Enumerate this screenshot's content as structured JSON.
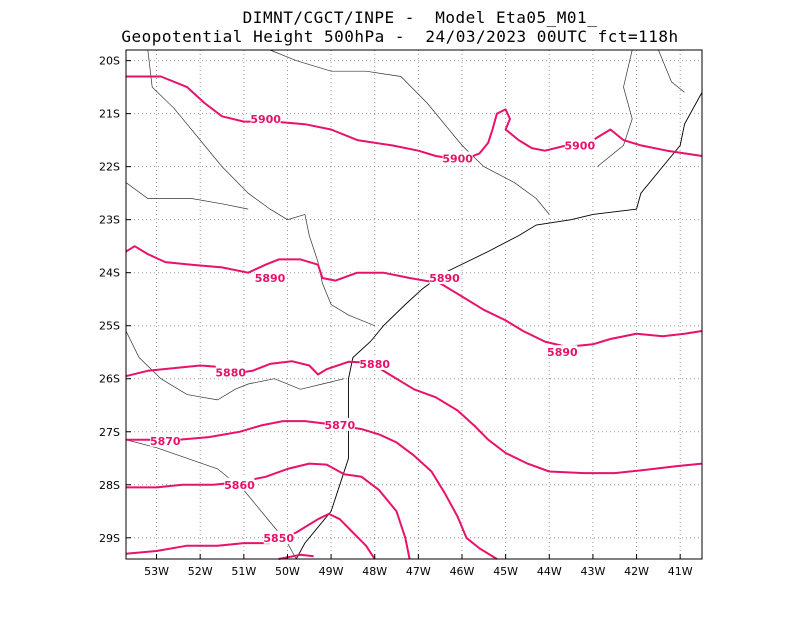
{
  "title_line1": "DIMNT/CGCT/INPE -  Model Eta05_M01_",
  "title_line2": "Geopotential Height 500hPa -  24/03/2023 00UTC fct=118h",
  "colors": {
    "contour": "#e8126a",
    "coast": "#000000",
    "grid": "#9a9a9a"
  },
  "chart_data": {
    "type": "contour-map",
    "variable": "Geopotential Height 500hPa",
    "lon_range": [
      -53.7,
      -40.5
    ],
    "lat_range": [
      -29.4,
      -19.8
    ],
    "x_ticks": [
      "53W",
      "52W",
      "51W",
      "50W",
      "49W",
      "48W",
      "47W",
      "46W",
      "45W",
      "44W",
      "43W",
      "42W",
      "41W"
    ],
    "y_ticks": [
      "20S",
      "21S",
      "22S",
      "23S",
      "24S",
      "25S",
      "26S",
      "27S",
      "28S",
      "29S"
    ],
    "contours": [
      {
        "level": 5900,
        "points": [
          [
            -53.7,
            -20.3
          ],
          [
            -52.9,
            -20.3
          ],
          [
            -52.3,
            -20.5
          ],
          [
            -51.9,
            -20.8
          ],
          [
            -51.5,
            -21.05
          ],
          [
            -51.0,
            -21.15
          ],
          [
            -50.3,
            -21.15
          ],
          [
            -49.6,
            -21.2
          ],
          [
            -49.0,
            -21.3
          ],
          [
            -48.4,
            -21.5
          ],
          [
            -47.6,
            -21.6
          ],
          [
            -47.0,
            -21.7
          ],
          [
            -46.6,
            -21.8
          ],
          [
            -46.2,
            -21.85
          ],
          [
            -45.9,
            -21.85
          ],
          [
            -45.6,
            -21.75
          ],
          [
            -45.4,
            -21.55
          ],
          [
            -45.3,
            -21.3
          ],
          [
            -45.2,
            -21.0
          ],
          [
            -45.0,
            -20.92
          ],
          [
            -44.9,
            -21.1
          ],
          [
            -45.0,
            -21.3
          ],
          [
            -44.7,
            -21.5
          ],
          [
            -44.4,
            -21.65
          ],
          [
            -44.1,
            -21.7
          ],
          [
            -43.6,
            -21.6
          ],
          [
            -43.0,
            -21.5
          ],
          [
            -42.6,
            -21.3
          ],
          [
            -42.3,
            -21.5
          ],
          [
            -41.9,
            -21.6
          ],
          [
            -41.3,
            -21.7
          ],
          [
            -40.5,
            -21.8
          ]
        ]
      },
      {
        "level": 5890,
        "points": [
          [
            -53.7,
            -23.6
          ],
          [
            -53.5,
            -23.5
          ],
          [
            -53.2,
            -23.65
          ],
          [
            -52.8,
            -23.8
          ],
          [
            -52.2,
            -23.85
          ],
          [
            -51.5,
            -23.9
          ],
          [
            -50.9,
            -24.0
          ],
          [
            -50.5,
            -23.85
          ],
          [
            -50.2,
            -23.75
          ],
          [
            -49.7,
            -23.75
          ],
          [
            -49.3,
            -23.85
          ],
          [
            -49.2,
            -24.1
          ],
          [
            -48.9,
            -24.15
          ],
          [
            -48.4,
            -24.0
          ],
          [
            -47.8,
            -24.0
          ],
          [
            -47.2,
            -24.1
          ],
          [
            -46.5,
            -24.2
          ],
          [
            -46.0,
            -24.45
          ],
          [
            -45.5,
            -24.7
          ],
          [
            -45.0,
            -24.9
          ],
          [
            -44.6,
            -25.1
          ],
          [
            -44.1,
            -25.3
          ],
          [
            -43.6,
            -25.4
          ],
          [
            -43.0,
            -25.35
          ],
          [
            -42.6,
            -25.25
          ],
          [
            -42.0,
            -25.15
          ],
          [
            -41.4,
            -25.2
          ],
          [
            -40.9,
            -25.15
          ],
          [
            -40.5,
            -25.1
          ]
        ]
      },
      {
        "level": 5880,
        "points": [
          [
            -53.7,
            -25.95
          ],
          [
            -53.2,
            -25.85
          ],
          [
            -52.6,
            -25.8
          ],
          [
            -52.0,
            -25.75
          ],
          [
            -51.5,
            -25.78
          ],
          [
            -51.2,
            -25.9
          ],
          [
            -50.8,
            -25.85
          ],
          [
            -50.4,
            -25.72
          ],
          [
            -49.9,
            -25.67
          ],
          [
            -49.5,
            -25.75
          ],
          [
            -49.3,
            -25.92
          ],
          [
            -49.1,
            -25.82
          ],
          [
            -48.6,
            -25.68
          ],
          [
            -48.1,
            -25.7
          ],
          [
            -47.6,
            -25.95
          ],
          [
            -47.1,
            -26.2
          ],
          [
            -46.6,
            -26.35
          ],
          [
            -46.1,
            -26.6
          ],
          [
            -45.7,
            -26.9
          ],
          [
            -45.4,
            -27.15
          ],
          [
            -45.0,
            -27.4
          ],
          [
            -44.5,
            -27.6
          ],
          [
            -44.0,
            -27.75
          ],
          [
            -43.2,
            -27.78
          ],
          [
            -42.5,
            -27.78
          ],
          [
            -41.8,
            -27.72
          ],
          [
            -41.1,
            -27.65
          ],
          [
            -40.5,
            -27.6
          ]
        ]
      },
      {
        "level": 5870,
        "points": [
          [
            -53.7,
            -27.15
          ],
          [
            -53.2,
            -27.15
          ],
          [
            -52.5,
            -27.15
          ],
          [
            -51.8,
            -27.1
          ],
          [
            -51.1,
            -27.0
          ],
          [
            -50.6,
            -26.88
          ],
          [
            -50.1,
            -26.8
          ],
          [
            -49.6,
            -26.8
          ],
          [
            -49.1,
            -26.85
          ],
          [
            -48.7,
            -26.9
          ],
          [
            -48.3,
            -26.95
          ],
          [
            -47.9,
            -27.05
          ],
          [
            -47.5,
            -27.2
          ],
          [
            -47.1,
            -27.45
          ],
          [
            -46.7,
            -27.75
          ],
          [
            -46.4,
            -28.15
          ],
          [
            -46.1,
            -28.6
          ],
          [
            -45.9,
            -29.0
          ],
          [
            -45.6,
            -29.2
          ],
          [
            -45.2,
            -29.4
          ]
        ]
      },
      {
        "level": 5860,
        "points": [
          [
            -53.7,
            -28.05
          ],
          [
            -53.0,
            -28.05
          ],
          [
            -52.4,
            -28.0
          ],
          [
            -51.7,
            -28.0
          ],
          [
            -51.1,
            -27.95
          ],
          [
            -50.5,
            -27.85
          ],
          [
            -50.0,
            -27.7
          ],
          [
            -49.5,
            -27.6
          ],
          [
            -49.1,
            -27.62
          ],
          [
            -48.7,
            -27.8
          ],
          [
            -48.3,
            -27.85
          ],
          [
            -47.9,
            -28.1
          ],
          [
            -47.5,
            -28.5
          ],
          [
            -47.3,
            -29.0
          ],
          [
            -47.2,
            -29.4
          ]
        ]
      },
      {
        "level": 5850,
        "points": [
          [
            -53.7,
            -29.3
          ],
          [
            -53.0,
            -29.25
          ],
          [
            -52.3,
            -29.15
          ],
          [
            -51.6,
            -29.15
          ],
          [
            -51.0,
            -29.1
          ],
          [
            -50.4,
            -29.1
          ],
          [
            -49.8,
            -28.9
          ],
          [
            -49.3,
            -28.65
          ],
          [
            -49.05,
            -28.55
          ],
          [
            -48.8,
            -28.65
          ],
          [
            -48.5,
            -28.9
          ],
          [
            -48.2,
            -29.15
          ],
          [
            -48.0,
            -29.4
          ]
        ]
      },
      {
        "level": 5850,
        "points": [
          [
            -50.2,
            -29.4
          ],
          [
            -49.7,
            -29.32
          ],
          [
            -49.4,
            -29.35
          ]
        ]
      }
    ],
    "contour_labels": [
      {
        "text": "5900",
        "lon": -50.5,
        "lat": -21.1
      },
      {
        "text": "5900",
        "lon": -46.1,
        "lat": -21.85
      },
      {
        "text": "5900",
        "lon": -43.3,
        "lat": -21.6
      },
      {
        "text": "5890",
        "lon": -50.4,
        "lat": -24.1
      },
      {
        "text": "5890",
        "lon": -46.4,
        "lat": -24.1
      },
      {
        "text": "5890",
        "lon": -43.7,
        "lat": -25.5
      },
      {
        "text": "5880",
        "lon": -51.3,
        "lat": -25.88
      },
      {
        "text": "5880",
        "lon": -48.0,
        "lat": -25.72
      },
      {
        "text": "5870",
        "lon": -52.8,
        "lat": -27.17
      },
      {
        "text": "5870",
        "lon": -48.8,
        "lat": -26.87
      },
      {
        "text": "5860",
        "lon": -51.1,
        "lat": -28.0
      },
      {
        "text": "5850",
        "lon": -50.2,
        "lat": -29.0
      }
    ],
    "coastline": [
      [
        -40.5,
        -20.6
      ],
      [
        -40.9,
        -21.2
      ],
      [
        -41.0,
        -21.6
      ],
      [
        -41.4,
        -22.0
      ],
      [
        -41.9,
        -22.5
      ],
      [
        -42.0,
        -22.8
      ],
      [
        -43.0,
        -22.9
      ],
      [
        -43.5,
        -23.0
      ],
      [
        -44.3,
        -23.1
      ],
      [
        -44.7,
        -23.3
      ],
      [
        -45.4,
        -23.6
      ],
      [
        -45.9,
        -23.8
      ],
      [
        -46.4,
        -24.0
      ],
      [
        -46.9,
        -24.3
      ],
      [
        -47.3,
        -24.6
      ],
      [
        -47.8,
        -25.0
      ],
      [
        -48.1,
        -25.3
      ],
      [
        -48.5,
        -25.6
      ],
      [
        -48.6,
        -26.0
      ],
      [
        -48.6,
        -26.5
      ],
      [
        -48.6,
        -27.0
      ],
      [
        -48.6,
        -27.5
      ],
      [
        -48.8,
        -28.0
      ],
      [
        -49.0,
        -28.5
      ],
      [
        -49.3,
        -28.8
      ],
      [
        -49.6,
        -29.1
      ],
      [
        -49.8,
        -29.4
      ]
    ],
    "borders": [
      [
        [
          -53.2,
          -19.8
        ],
        [
          -53.1,
          -20.5
        ],
        [
          -52.6,
          -20.9
        ],
        [
          -52.0,
          -21.5
        ],
        [
          -51.5,
          -22.0
        ],
        [
          -50.9,
          -22.5
        ],
        [
          -50.4,
          -22.8
        ],
        [
          -50.0,
          -23.0
        ],
        [
          -49.6,
          -22.9
        ]
      ],
      [
        [
          -49.6,
          -22.9
        ],
        [
          -49.5,
          -23.3
        ],
        [
          -49.3,
          -23.8
        ],
        [
          -49.2,
          -24.2
        ],
        [
          -49.0,
          -24.6
        ],
        [
          -48.6,
          -24.8
        ],
        [
          -48.0,
          -25.0
        ]
      ],
      [
        [
          -53.7,
          -25.1
        ],
        [
          -53.4,
          -25.6
        ],
        [
          -52.9,
          -26.0
        ],
        [
          -52.3,
          -26.3
        ],
        [
          -51.6,
          -26.4
        ],
        [
          -51.2,
          -26.2
        ],
        [
          -50.9,
          -26.1
        ],
        [
          -50.3,
          -26.0
        ],
        [
          -49.7,
          -26.2
        ],
        [
          -49.2,
          -26.1
        ],
        [
          -48.7,
          -26.0
        ]
      ],
      [
        [
          -53.7,
          -27.15
        ],
        [
          -53.0,
          -27.3
        ],
        [
          -52.3,
          -27.5
        ],
        [
          -51.6,
          -27.7
        ],
        [
          -51.0,
          -28.1
        ],
        [
          -50.5,
          -28.6
        ],
        [
          -50.0,
          -29.1
        ],
        [
          -49.8,
          -29.4
        ]
      ],
      [
        [
          -50.4,
          -19.8
        ],
        [
          -49.8,
          -20.0
        ],
        [
          -49.0,
          -20.2
        ],
        [
          -48.2,
          -20.2
        ],
        [
          -47.4,
          -20.3
        ],
        [
          -46.8,
          -20.8
        ],
        [
          -46.5,
          -21.1
        ],
        [
          -46.0,
          -21.6
        ],
        [
          -45.5,
          -22.0
        ],
        [
          -44.8,
          -22.3
        ],
        [
          -44.3,
          -22.6
        ],
        [
          -44.0,
          -22.9
        ]
      ],
      [
        [
          -42.9,
          -22.0
        ],
        [
          -42.3,
          -21.6
        ],
        [
          -42.1,
          -21.1
        ],
        [
          -42.3,
          -20.5
        ],
        [
          -42.1,
          -19.8
        ]
      ],
      [
        [
          -41.5,
          -19.8
        ],
        [
          -41.2,
          -20.4
        ],
        [
          -40.9,
          -20.6
        ]
      ],
      [
        [
          -53.7,
          -22.3
        ],
        [
          -53.2,
          -22.6
        ],
        [
          -52.6,
          -22.6
        ],
        [
          -52.2,
          -22.6
        ],
        [
          -51.5,
          -22.7
        ],
        [
          -50.9,
          -22.8
        ]
      ]
    ]
  }
}
